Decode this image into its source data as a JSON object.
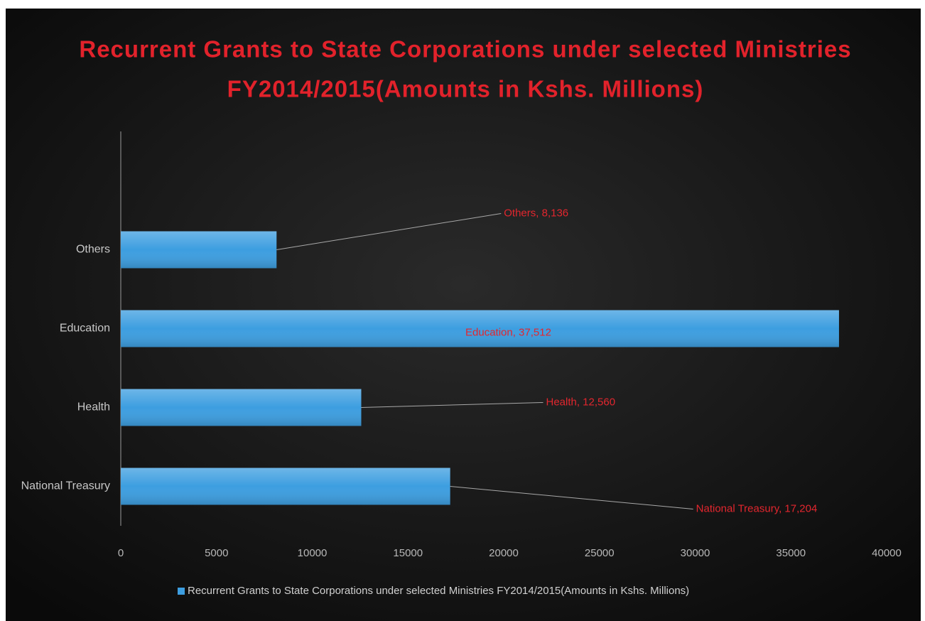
{
  "chart_data": {
    "type": "hbar",
    "title": [
      "Recurrent Grants to State Corporations under selected Ministries",
      "FY2014/2015(Amounts in Kshs. Millions)"
    ],
    "categories": [
      "National Treasury",
      "Health",
      "Education",
      "Others"
    ],
    "series": [
      {
        "name": "Recurrent Grants to State Corporations under selected Ministries FY2014/2015(Amounts in Kshs. Millions)",
        "color": "#3d9ee0",
        "values": [
          17204,
          12560,
          37512,
          8136
        ],
        "value_labels": [
          "National Treasury, 17,204",
          "Health, 12,560",
          "Education, 37,512",
          "Others, 8,136"
        ]
      }
    ],
    "xlim": [
      0,
      40000
    ],
    "xticks": [
      0,
      5000,
      10000,
      15000,
      20000,
      25000,
      30000,
      35000,
      40000
    ],
    "legend": "bottom"
  }
}
